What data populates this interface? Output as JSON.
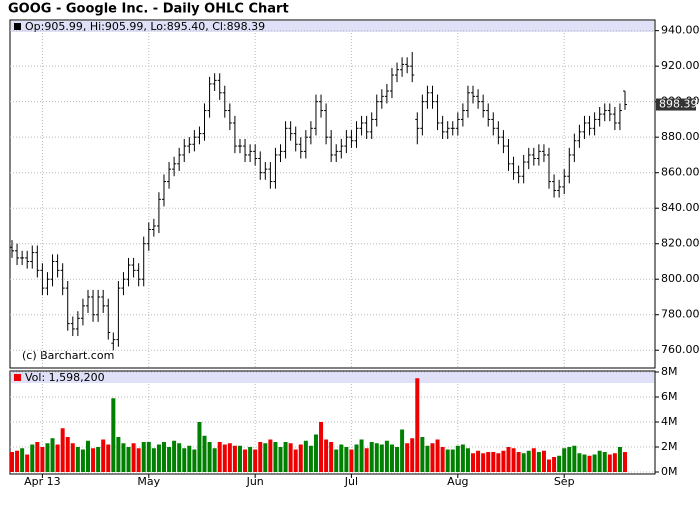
{
  "chart_data": [
    {
      "type": "ohlc",
      "title": "GOOG - Google Inc. - Daily OHLC Chart",
      "info": "Op:905.99, Hi:905.99, Lo:895.40, Cl:898.39",
      "credit": "(c) Barchart.com",
      "color": "#000000",
      "grid": true,
      "ylim": [
        750,
        946
      ],
      "yticks": [
        {
          "value": 760,
          "label": "760.00"
        },
        {
          "value": 780,
          "label": "780.00"
        },
        {
          "value": 800,
          "label": "800.00"
        },
        {
          "value": 820,
          "label": "820.00"
        },
        {
          "value": 840,
          "label": "840.00"
        },
        {
          "value": 860,
          "label": "860.00"
        },
        {
          "value": 880,
          "label": "880.00"
        },
        {
          "value": 900,
          "label": "900.00"
        },
        {
          "value": 920,
          "label": "920.00"
        },
        {
          "value": 940,
          "label": "940.00"
        }
      ],
      "categories": [
        null,
        null,
        null,
        null,
        null,
        null,
        "Apr 13",
        null,
        null,
        null,
        null,
        null,
        null,
        null,
        null,
        null,
        null,
        null,
        null,
        null,
        null,
        null,
        null,
        null,
        null,
        null,
        null,
        "May",
        null,
        null,
        null,
        null,
        null,
        null,
        null,
        null,
        null,
        null,
        null,
        null,
        null,
        null,
        null,
        null,
        null,
        null,
        null,
        null,
        "Jun",
        null,
        null,
        null,
        null,
        null,
        null,
        null,
        null,
        null,
        null,
        null,
        null,
        null,
        null,
        null,
        null,
        null,
        null,
        "Jul",
        null,
        null,
        null,
        null,
        null,
        null,
        null,
        null,
        null,
        null,
        null,
        null,
        null,
        null,
        null,
        null,
        null,
        null,
        null,
        null,
        "Aug",
        null,
        null,
        null,
        null,
        null,
        null,
        null,
        null,
        null,
        null,
        null,
        null,
        null,
        null,
        null,
        null,
        null,
        null,
        null,
        null,
        "Sep",
        null,
        null,
        null,
        null,
        null,
        null,
        null,
        null,
        null,
        null,
        null,
        null
      ],
      "open": [
        818,
        816,
        812,
        812,
        810,
        815,
        805,
        795,
        800,
        810,
        805,
        795,
        775,
        772,
        778,
        785,
        790,
        780,
        790,
        785,
        764,
        766,
        795,
        800,
        808,
        805,
        800,
        820,
        828,
        830,
        845,
        855,
        862,
        865,
        870,
        875,
        876,
        880,
        882,
        895,
        910,
        912,
        905,
        895,
        888,
        875,
        875,
        870,
        872,
        868,
        860,
        862,
        855,
        870,
        872,
        885,
        882,
        876,
        872,
        880,
        885,
        900,
        895,
        880,
        870,
        872,
        875,
        880,
        878,
        885,
        888,
        883,
        890,
        900,
        903,
        906,
        915,
        918,
        921,
        920,
        890,
        885,
        900,
        905,
        900,
        888,
        883,
        885,
        885,
        890,
        895,
        905,
        903,
        900,
        895,
        890,
        885,
        880,
        875,
        865,
        860,
        858,
        866,
        870,
        868,
        872,
        870,
        855,
        850,
        852,
        858,
        870,
        878,
        883,
        888,
        885,
        890,
        893,
        895,
        893,
        888,
        905.99
      ],
      "high": [
        822,
        820,
        816,
        816,
        819,
        819,
        809,
        804,
        814,
        814,
        809,
        799,
        779,
        782,
        789,
        794,
        794,
        794,
        794,
        789,
        770,
        799,
        804,
        812,
        812,
        809,
        824,
        832,
        834,
        849,
        859,
        866,
        869,
        874,
        879,
        880,
        884,
        886,
        899,
        914,
        916,
        916,
        909,
        899,
        892,
        879,
        879,
        876,
        876,
        872,
        866,
        866,
        874,
        876,
        889,
        889,
        886,
        880,
        884,
        889,
        904,
        904,
        899,
        884,
        876,
        879,
        884,
        884,
        889,
        892,
        892,
        894,
        904,
        907,
        910,
        919,
        922,
        925,
        925,
        928,
        894,
        904,
        909,
        909,
        904,
        892,
        889,
        889,
        894,
        899,
        909,
        909,
        907,
        904,
        899,
        894,
        889,
        884,
        879,
        869,
        864,
        870,
        874,
        874,
        876,
        876,
        874,
        859,
        856,
        862,
        874,
        882,
        887,
        892,
        892,
        894,
        897,
        899,
        899,
        897,
        899,
        905.99
      ],
      "low": [
        812,
        808,
        808,
        806,
        806,
        801,
        791,
        791,
        796,
        801,
        791,
        771,
        768,
        768,
        774,
        781,
        776,
        776,
        781,
        766,
        760,
        762,
        791,
        796,
        801,
        796,
        796,
        816,
        824,
        826,
        841,
        851,
        858,
        861,
        866,
        871,
        872,
        876,
        878,
        891,
        906,
        901,
        891,
        884,
        871,
        871,
        866,
        866,
        864,
        856,
        856,
        851,
        851,
        866,
        868,
        878,
        872,
        868,
        868,
        876,
        881,
        891,
        876,
        866,
        866,
        868,
        871,
        874,
        874,
        881,
        879,
        879,
        886,
        896,
        899,
        902,
        911,
        914,
        916,
        911,
        876,
        881,
        896,
        896,
        884,
        879,
        879,
        881,
        881,
        886,
        891,
        899,
        896,
        891,
        886,
        881,
        876,
        871,
        861,
        856,
        854,
        854,
        862,
        864,
        864,
        866,
        851,
        846,
        846,
        848,
        854,
        866,
        874,
        879,
        881,
        881,
        886,
        889,
        889,
        884,
        884,
        895.4
      ],
      "close": [
        816,
        812,
        812,
        810,
        815,
        805,
        795,
        800,
        810,
        805,
        795,
        775,
        772,
        778,
        785,
        790,
        780,
        790,
        785,
        770,
        766,
        795,
        800,
        808,
        805,
        800,
        820,
        828,
        830,
        845,
        855,
        862,
        865,
        870,
        875,
        876,
        880,
        882,
        895,
        910,
        912,
        905,
        895,
        888,
        875,
        875,
        870,
        872,
        868,
        860,
        862,
        855,
        870,
        872,
        885,
        882,
        876,
        872,
        880,
        885,
        900,
        895,
        880,
        870,
        872,
        875,
        880,
        878,
        885,
        888,
        883,
        890,
        900,
        903,
        906,
        915,
        918,
        921,
        920,
        915,
        885,
        900,
        905,
        900,
        888,
        883,
        885,
        885,
        890,
        895,
        905,
        903,
        900,
        895,
        890,
        885,
        880,
        875,
        865,
        860,
        858,
        866,
        870,
        868,
        872,
        870,
        855,
        850,
        852,
        858,
        870,
        878,
        883,
        888,
        885,
        890,
        893,
        895,
        893,
        888,
        895,
        898.39
      ]
    },
    {
      "type": "bar",
      "label": "Vol: 1,598,200",
      "up_color": "#008000",
      "down_color": "#ee0000",
      "grid": true,
      "ylim": [
        0,
        8000000
      ],
      "yticks": [
        {
          "value": 0,
          "label": "0M"
        },
        {
          "value": 2000000,
          "label": "2M"
        },
        {
          "value": 4000000,
          "label": "4M"
        },
        {
          "value": 6000000,
          "label": "6M"
        },
        {
          "value": 8000000,
          "label": "8M"
        }
      ],
      "values": [
        1600000,
        1700000,
        1900000,
        1400000,
        2200000,
        2400000,
        2000000,
        2300000,
        2700000,
        2200000,
        3500000,
        2800000,
        2300000,
        2000000,
        1800000,
        2500000,
        1900000,
        2000000,
        2600000,
        2200000,
        5900000,
        2800000,
        2300000,
        2000000,
        2300000,
        1900000,
        2400000,
        2400000,
        1900000,
        2200000,
        2400000,
        2000000,
        2500000,
        2300000,
        1900000,
        2100000,
        1800000,
        4000000,
        2900000,
        2400000,
        1900000,
        2400000,
        2200000,
        2300000,
        2100000,
        2100000,
        1800000,
        2000000,
        1800000,
        2400000,
        2300000,
        2600000,
        2400000,
        2000000,
        2400000,
        2300000,
        1800000,
        2200000,
        2500000,
        2100000,
        3000000,
        4000000,
        2600000,
        2400000,
        1800000,
        2200000,
        2000000,
        1800000,
        2200000,
        2600000,
        1900000,
        2400000,
        2300000,
        2200000,
        2500000,
        2200000,
        2000000,
        3400000,
        2300000,
        2700000,
        7500000,
        2800000,
        2100000,
        2300000,
        2600000,
        2000000,
        1800000,
        1800000,
        2100000,
        2200000,
        1900000,
        1500000,
        1700000,
        1500000,
        1600000,
        1600000,
        1500000,
        1700000,
        2000000,
        1900000,
        1600000,
        1500000,
        1700000,
        1900000,
        1600000,
        1700000,
        1000000,
        1200000,
        1300000,
        1900000,
        2000000,
        2100000,
        1500000,
        1400000,
        1300000,
        1400000,
        1700000,
        1600000,
        1400000,
        1500000,
        2000000,
        1598200
      ]
    }
  ]
}
